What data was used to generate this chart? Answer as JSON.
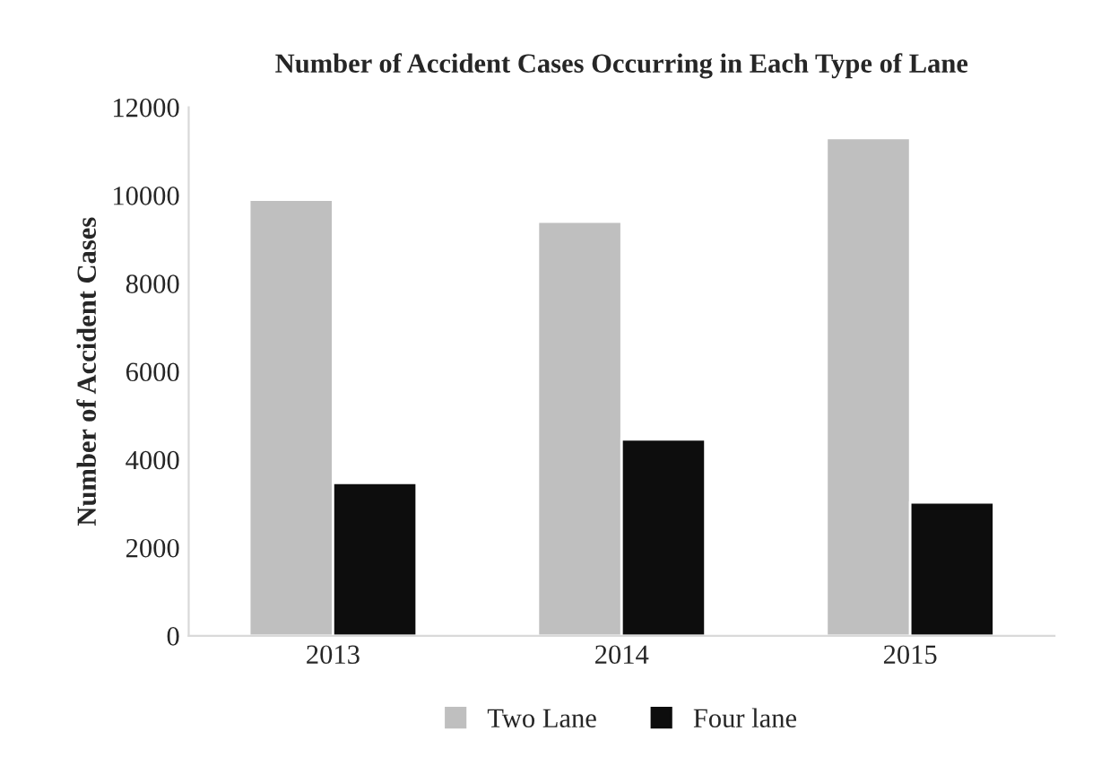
{
  "chart_data": {
    "type": "bar",
    "title": "Number of Accident Cases Occurring in Each Type of Lane",
    "ylabel": "Number of Accident Cases",
    "categories": [
      "2013",
      "2014",
      "2015"
    ],
    "series": [
      {
        "name": "Two Lane",
        "color": "#bfbfbf",
        "values": [
          9900,
          9400,
          11300
        ]
      },
      {
        "name": "Four lane",
        "color": "#0d0d0d",
        "values": [
          3470,
          4460,
          3030
        ]
      }
    ],
    "ylim": [
      0,
      12000
    ],
    "yticks": [
      0,
      2000,
      4000,
      6000,
      8000,
      10000,
      12000
    ],
    "grid": false,
    "legend": "bottom"
  }
}
